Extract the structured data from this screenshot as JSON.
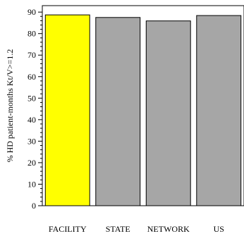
{
  "chart_data": {
    "type": "bar",
    "title": "",
    "xlabel": "",
    "ylabel": "% HD patient-months Kt/V>=1.2",
    "ylim": [
      0,
      93
    ],
    "yticks": [
      0,
      10,
      20,
      30,
      40,
      50,
      60,
      70,
      80,
      90
    ],
    "grid": false,
    "categories": [
      "FACILITY",
      "STATE",
      "NETWORK",
      "US"
    ],
    "values": [
      88.7,
      87.5,
      85.9,
      88.4
    ],
    "colors": [
      "#ffff00",
      "#a6a6a6",
      "#a6a6a6",
      "#a6a6a6"
    ]
  }
}
